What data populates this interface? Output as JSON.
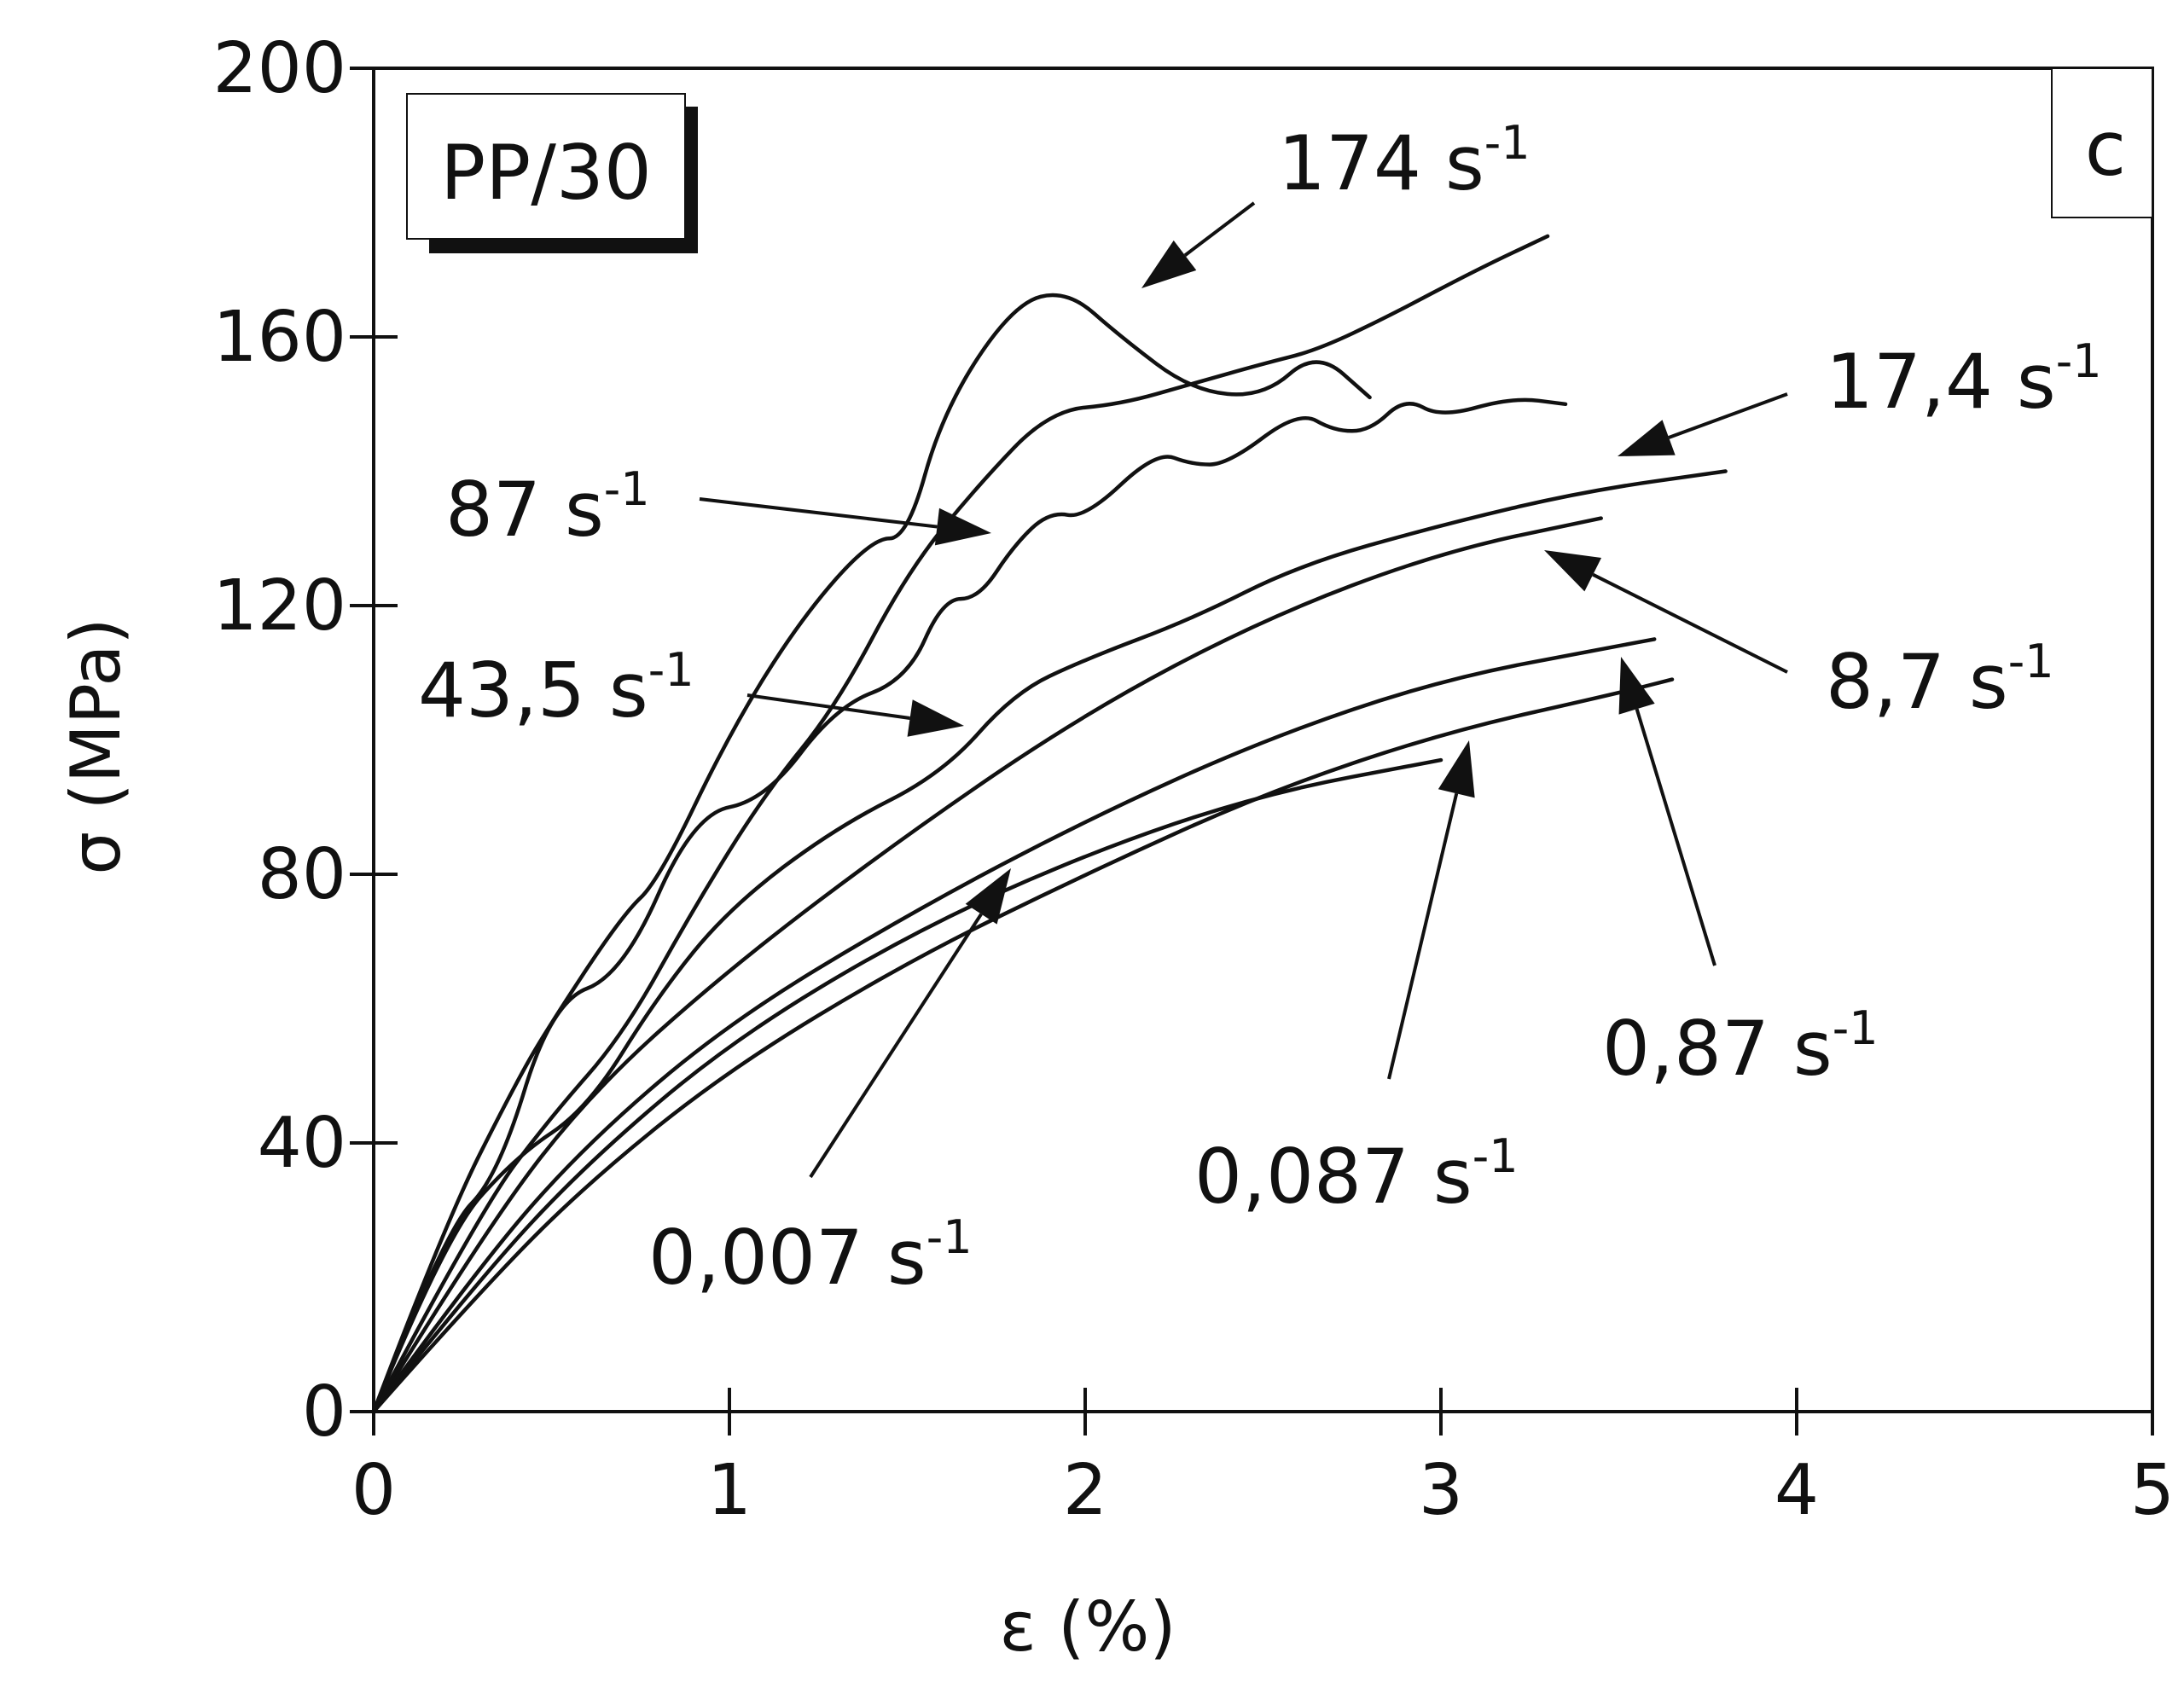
{
  "chart_data": {
    "type": "line",
    "title": "",
    "panel_label": "c",
    "sample_label": "PP/30",
    "xlabel": "ε (%)",
    "ylabel": "σ (MPa)",
    "xlim": [
      0,
      5
    ],
    "ylim": [
      0,
      200
    ],
    "x_ticks": [
      "0",
      "1",
      "2",
      "3",
      "4",
      "5"
    ],
    "y_ticks": [
      "0",
      "40",
      "80",
      "120",
      "160",
      "200"
    ],
    "grid": false,
    "legend": "none",
    "series": [
      {
        "name": "0,007 s-1",
        "rate_text": "0,007 s",
        "sup": "-1",
        "x": [
          0,
          0.3,
          0.6,
          1.0,
          1.5,
          2.0,
          2.5,
          3.0
        ],
        "y": [
          0,
          20,
          37,
          55,
          71,
          83,
          92,
          97
        ]
      },
      {
        "name": "0,087 s-1",
        "rate_text": "0,087 s",
        "sup": "-1",
        "x": [
          0,
          0.3,
          0.6,
          1.0,
          1.5,
          2.0,
          2.5,
          3.0,
          3.5,
          3.65
        ],
        "y": [
          0,
          18,
          34,
          51,
          67,
          80,
          92,
          101,
          107,
          109
        ]
      },
      {
        "name": "0,87 s-1",
        "rate_text": "0,87 s",
        "sup": "-1",
        "x": [
          0,
          0.3,
          0.6,
          1.0,
          1.5,
          2.0,
          2.5,
          3.0,
          3.5,
          3.6
        ],
        "y": [
          0,
          22,
          40,
          58,
          74,
          88,
          100,
          109,
          114,
          115
        ]
      },
      {
        "name": "8,7 s-1",
        "rate_text": "8,7 s",
        "sup": "-1",
        "x": [
          0,
          0.3,
          0.6,
          1.0,
          1.5,
          2.0,
          2.5,
          3.0,
          3.45
        ],
        "y": [
          0,
          26,
          47,
          66,
          86,
          104,
          118,
          128,
          133
        ]
      },
      {
        "name": "17,4 s-1",
        "rate_text": "17,4 s",
        "sup": "-1",
        "x": [
          0,
          0.2,
          0.4,
          0.6,
          0.8,
          1.0,
          1.3,
          1.6,
          1.8,
          2.0,
          2.3,
          2.6,
          3.0,
          3.4,
          3.8
        ],
        "y": [
          0,
          26,
          38,
          45,
          62,
          75,
          87,
          95,
          107,
          112,
          118,
          126,
          132,
          137,
          140
        ]
      },
      {
        "name": "43,5 s-1",
        "rate_text": "43,5 s",
        "sup": "-1",
        "x": [
          0,
          0.2,
          0.35,
          0.5,
          0.7,
          0.9,
          1.1,
          1.3,
          1.5,
          1.6,
          1.7,
          1.8,
          1.9,
          2.0,
          2.2,
          2.3,
          2.4,
          2.6,
          2.7,
          2.8,
          2.9,
          3.0,
          3.2,
          3.35
        ],
        "y": [
          0,
          27,
          35,
          61,
          65,
          89,
          91,
          105,
          109,
          121,
          121,
          129,
          134,
          133,
          143,
          141,
          141,
          149,
          146,
          146,
          151,
          148,
          151,
          150
        ]
      },
      {
        "name": "87 s-1",
        "rate_text": "87 s",
        "sup": "-1",
        "x": [
          0,
          0.3,
          0.5,
          0.7,
          0.9,
          1.1,
          1.3,
          1.5,
          1.7,
          1.9,
          2.1,
          2.3,
          2.5,
          2.65,
          2.85,
          3.1,
          3.3
        ],
        "y": [
          0,
          30,
          44,
          56,
          75,
          92,
          105,
          125,
          138,
          149,
          150,
          153,
          156,
          158,
          163,
          170,
          175
        ]
      },
      {
        "name": "174 s-1",
        "rate_text": "174 s",
        "sup": "-1",
        "x": [
          0,
          0.2,
          0.4,
          0.5,
          0.7,
          0.8,
          1.0,
          1.2,
          1.4,
          1.5,
          1.6,
          1.8,
          1.95,
          2.1,
          2.3,
          2.5,
          2.65,
          2.8
        ],
        "y": [
          0,
          28,
          49,
          58,
          74,
          79,
          101,
          118,
          130,
          130,
          149,
          165,
          167,
          160,
          152,
          151,
          158,
          151
        ]
      }
    ]
  }
}
